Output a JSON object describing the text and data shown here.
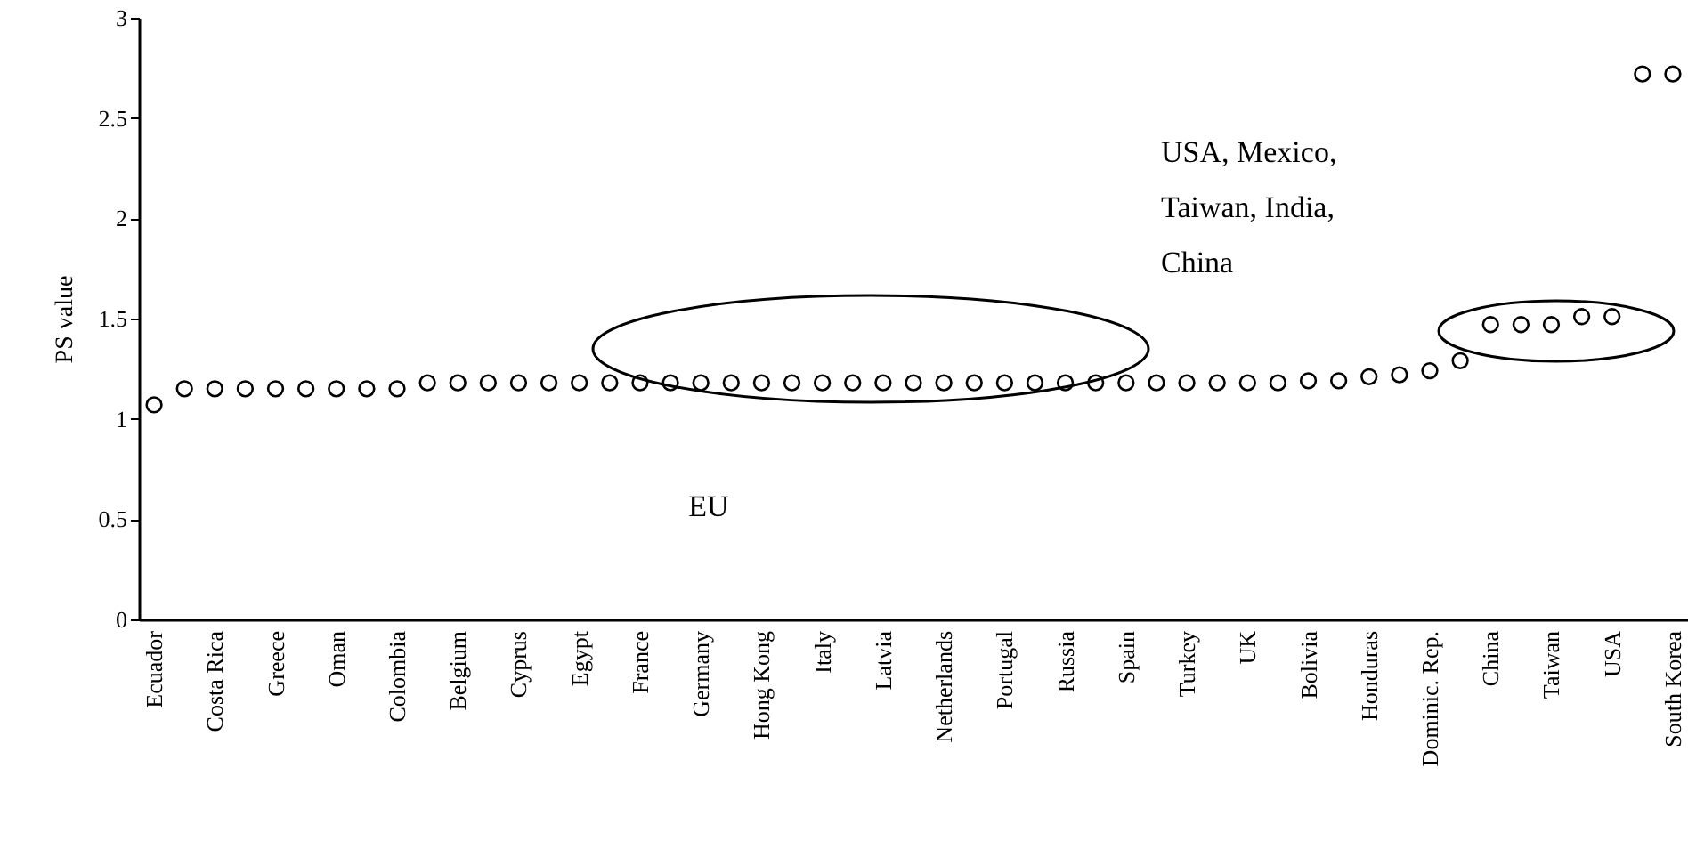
{
  "chart_data": {
    "type": "scatter",
    "ylabel": "PS value",
    "categories": [
      "Ecuador",
      null,
      "Costa Rica",
      null,
      "Greece",
      null,
      "Oman",
      null,
      "Colombia",
      null,
      "Belgium",
      null,
      "Cyprus",
      null,
      "Egypt",
      null,
      "France",
      null,
      "Germany",
      null,
      "Hong Kong",
      null,
      "Italy",
      null,
      "Latvia",
      null,
      "Netherlands",
      null,
      "Portugal",
      null,
      "Russia",
      null,
      "Spain",
      null,
      "Turkey",
      null,
      "UK",
      null,
      "Bolivia",
      null,
      "Honduras",
      null,
      "Dominic. Rep.",
      null,
      "China",
      null,
      "Taiwan",
      null,
      "USA",
      null,
      "South Korea"
    ],
    "values": [
      1.07,
      1.15,
      1.15,
      1.15,
      1.15,
      1.15,
      1.15,
      1.15,
      1.15,
      1.18,
      1.18,
      1.18,
      1.18,
      1.18,
      1.18,
      1.18,
      1.18,
      1.18,
      1.18,
      1.18,
      1.18,
      1.18,
      1.18,
      1.18,
      1.18,
      1.18,
      1.18,
      1.18,
      1.18,
      1.18,
      1.18,
      1.18,
      1.18,
      1.18,
      1.18,
      1.18,
      1.18,
      1.18,
      1.19,
      1.19,
      1.21,
      1.22,
      1.24,
      1.29,
      1.47,
      1.47,
      1.47,
      1.51,
      1.51,
      2.72,
      2.72
    ],
    "color": "#000000",
    "marker": "circle",
    "ylim": [
      0,
      3
    ],
    "yticks": [
      0,
      0.5,
      1,
      1.5,
      2,
      2.5,
      3
    ],
    "grid": false,
    "annotations": [
      "EU",
      "USA, Mexico, Taiwan, India, China"
    ]
  }
}
